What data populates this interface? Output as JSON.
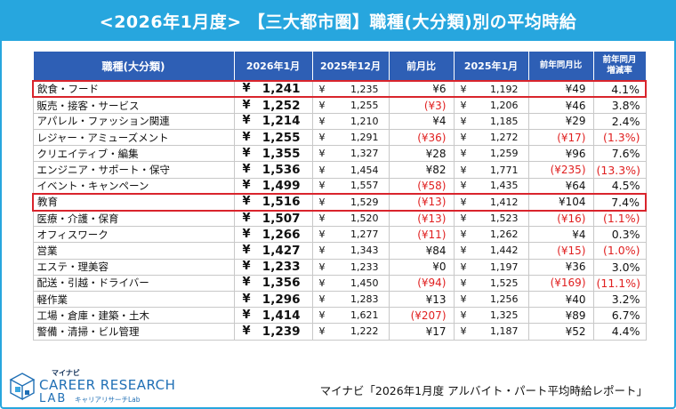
{
  "title": "<2026年1月度> 【三大都市圏】職種(大分類)別の平均時給",
  "columns": {
    "job": "職種(大分類)",
    "jan2026": "2026年1月",
    "dec2025": "2025年12月",
    "mom": "前月比",
    "jan2025": "2025年1月",
    "yoy": "前年同月比",
    "yoy_rate": "前年同月\n増減率"
  },
  "yen_symbol": "¥",
  "rows": [
    {
      "job": "飲食・フード",
      "jan2026": "1,241",
      "dec2025": "1,235",
      "mom": "¥6",
      "jan2025": "1,192",
      "yoy": "¥49",
      "yoy_rate": "4.1%",
      "highlight": true
    },
    {
      "job": "販売・接客・サービス",
      "jan2026": "1,252",
      "dec2025": "1,255",
      "mom": "(¥3)",
      "jan2025": "1,206",
      "yoy": "¥46",
      "yoy_rate": "3.8%"
    },
    {
      "job": "アパレル・ファッション関連",
      "jan2026": "1,214",
      "dec2025": "1,210",
      "mom": "¥4",
      "jan2025": "1,185",
      "yoy": "¥29",
      "yoy_rate": "2.4%"
    },
    {
      "job": "レジャー・アミューズメント",
      "jan2026": "1,255",
      "dec2025": "1,291",
      "mom": "(¥36)",
      "jan2025": "1,272",
      "yoy": "(¥17)",
      "yoy_rate": "(1.3%)"
    },
    {
      "job": "クリエイティブ・編集",
      "jan2026": "1,355",
      "dec2025": "1,327",
      "mom": "¥28",
      "jan2025": "1,259",
      "yoy": "¥96",
      "yoy_rate": "7.6%"
    },
    {
      "job": "エンジニア・サポート・保守",
      "jan2026": "1,536",
      "dec2025": "1,454",
      "mom": "¥82",
      "jan2025": "1,771",
      "yoy": "(¥235)",
      "yoy_rate": "(13.3%)"
    },
    {
      "job": "イベント・キャンペーン",
      "jan2026": "1,499",
      "dec2025": "1,557",
      "mom": "(¥58)",
      "jan2025": "1,435",
      "yoy": "¥64",
      "yoy_rate": "4.5%"
    },
    {
      "job": "教育",
      "jan2026": "1,516",
      "dec2025": "1,529",
      "mom": "(¥13)",
      "jan2025": "1,412",
      "yoy": "¥104",
      "yoy_rate": "7.4%",
      "highlight": true
    },
    {
      "job": "医療・介護・保育",
      "jan2026": "1,507",
      "dec2025": "1,520",
      "mom": "(¥13)",
      "jan2025": "1,523",
      "yoy": "(¥16)",
      "yoy_rate": "(1.1%)"
    },
    {
      "job": "オフィスワーク",
      "jan2026": "1,266",
      "dec2025": "1,277",
      "mom": "(¥11)",
      "jan2025": "1,262",
      "yoy": "¥4",
      "yoy_rate": "0.3%"
    },
    {
      "job": "営業",
      "jan2026": "1,427",
      "dec2025": "1,343",
      "mom": "¥84",
      "jan2025": "1,442",
      "yoy": "(¥15)",
      "yoy_rate": "(1.0%)"
    },
    {
      "job": "エステ・理美容",
      "jan2026": "1,233",
      "dec2025": "1,233",
      "mom": "¥0",
      "jan2025": "1,197",
      "yoy": "¥36",
      "yoy_rate": "3.0%"
    },
    {
      "job": "配送・引越・ドライバー",
      "jan2026": "1,356",
      "dec2025": "1,450",
      "mom": "(¥94)",
      "jan2025": "1,525",
      "yoy": "(¥169)",
      "yoy_rate": "(11.1%)"
    },
    {
      "job": "軽作業",
      "jan2026": "1,296",
      "dec2025": "1,283",
      "mom": "¥13",
      "jan2025": "1,256",
      "yoy": "¥40",
      "yoy_rate": "3.2%"
    },
    {
      "job": "工場・倉庫・建築・土木",
      "jan2026": "1,414",
      "dec2025": "1,621",
      "mom": "(¥207)",
      "jan2025": "1,325",
      "yoy": "¥89",
      "yoy_rate": "6.7%"
    },
    {
      "job": "警備・清掃・ビル管理",
      "jan2026": "1,239",
      "dec2025": "1,222",
      "mom": "¥17",
      "jan2025": "1,187",
      "yoy": "¥52",
      "yoy_rate": "4.4%"
    }
  ],
  "logo": {
    "top": "マイナビ",
    "main": "CAREER RESEARCH",
    "lab": "LAB",
    "sub": "キャリアリサーチLab"
  },
  "source": "マイナビ「2026年1月度 アルバイト・パート平均時給レポート」",
  "colors": {
    "header_bg": "#2e5fb5",
    "title_bg": "#27a6de",
    "negative": "#e02020",
    "highlight_border": "#d9242c"
  }
}
